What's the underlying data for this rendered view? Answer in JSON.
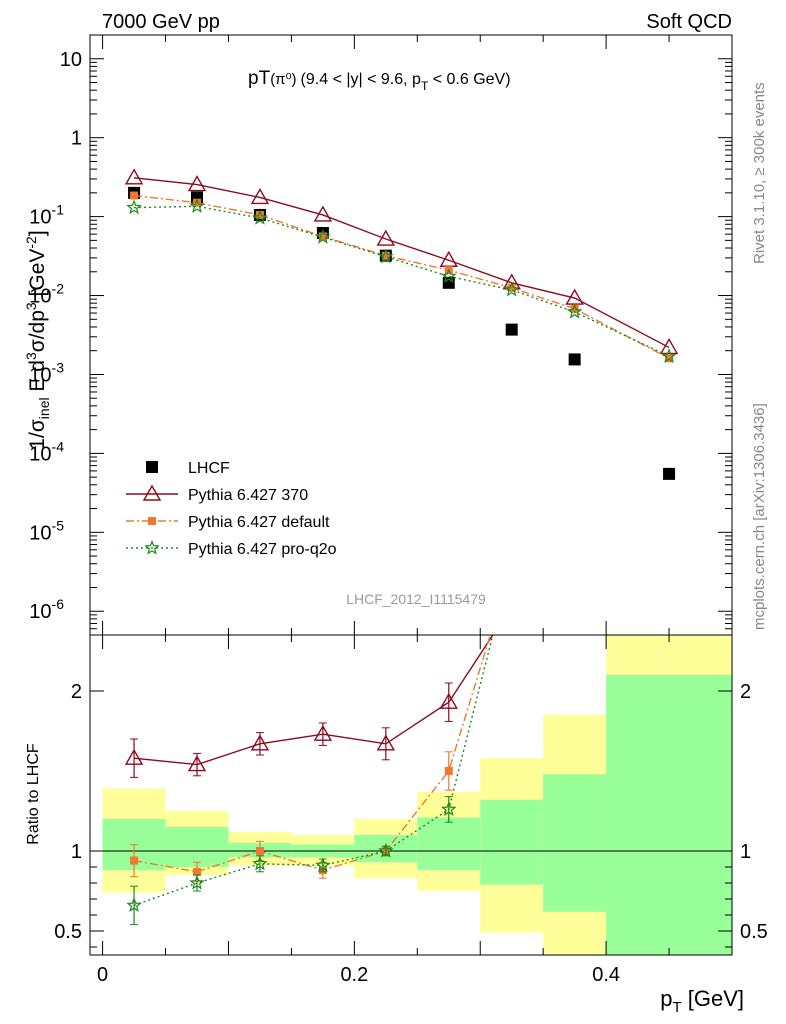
{
  "header": {
    "left": "7000 GeV pp",
    "right": "Soft QCD"
  },
  "side_labels": {
    "rivet": "Rivet 3.1.10, ≥ 300k events",
    "mcplots": "mcplots.cern.ch [arXiv:1306.3436]"
  },
  "chart_data": [
    {
      "type": "scatter",
      "panel": "main",
      "title_main": "pT",
      "title_particle": "(π⁰)",
      "title_rest": "(9.4 < |y| < 9.6, p",
      "title_sub": "T",
      "title_end": " < 0.6 GeV)",
      "watermark": "LHCF_2012_I1115479",
      "ylabel": "1/σinel E d³σ/dp³ [GeV⁻²]",
      "yscale": "log",
      "ylim": [
        5e-07,
        20
      ],
      "xlim": [
        -0.01,
        0.5
      ],
      "yticks": [
        {
          "v": 10,
          "b": "10",
          "e": ""
        },
        {
          "v": 1,
          "b": "1",
          "e": ""
        },
        {
          "v": 0.1,
          "b": "10",
          "e": "-1"
        },
        {
          "v": 0.01,
          "b": "10",
          "e": "-2"
        },
        {
          "v": 0.001,
          "b": "10",
          "e": "-3"
        },
        {
          "v": 0.0001,
          "b": "10",
          "e": "-4"
        },
        {
          "v": 1e-05,
          "b": "10",
          "e": "-5"
        },
        {
          "v": 1e-06,
          "b": "10",
          "e": "-6"
        }
      ],
      "legend": {
        "position": "bottom-left",
        "entries": [
          "LHCF",
          "Pythia 6.427 370",
          "Pythia 6.427 default",
          "Pythia 6.427 pro-q2o"
        ]
      },
      "series": [
        {
          "name": "LHCF",
          "color": "#000000",
          "marker": "square",
          "x": [
            0.025,
            0.075,
            0.125,
            0.175,
            0.225,
            0.275,
            0.325,
            0.375,
            0.45
          ],
          "y": [
            0.2,
            0.175,
            0.105,
            0.062,
            0.032,
            0.0145,
            0.0037,
            0.00155,
            5.5e-05
          ]
        },
        {
          "name": "Pythia 6.427 370",
          "color": "#8b0a1e",
          "marker": "triangle",
          "dash": "",
          "x": [
            0.025,
            0.075,
            0.125,
            0.175,
            0.225,
            0.275,
            0.325,
            0.375,
            0.45
          ],
          "y": [
            0.31,
            0.255,
            0.175,
            0.105,
            0.052,
            0.028,
            0.0145,
            0.0093,
            0.0022
          ]
        },
        {
          "name": "Pythia 6.427 default",
          "color": "#f07830",
          "marker": "square-small",
          "dash": "8 3 2 3",
          "x": [
            0.025,
            0.075,
            0.125,
            0.175,
            0.225,
            0.275,
            0.325,
            0.375,
            0.45
          ],
          "y": [
            0.185,
            0.15,
            0.105,
            0.056,
            0.032,
            0.021,
            0.0125,
            0.0068,
            0.0016
          ]
        },
        {
          "name": "Pythia 6.427 pro-q2o",
          "color": "#1a8a1a",
          "marker": "star",
          "dash": "2 3",
          "x": [
            0.025,
            0.075,
            0.125,
            0.175,
            0.225,
            0.275,
            0.325,
            0.375,
            0.45
          ],
          "y": [
            0.13,
            0.135,
            0.096,
            0.055,
            0.031,
            0.0175,
            0.0118,
            0.0062,
            0.0017
          ]
        }
      ]
    },
    {
      "type": "scatter",
      "panel": "ratio",
      "ylabel": "Ratio to LHCF",
      "xlabel_main": "p",
      "xlabel_sub": "T",
      "xlabel_unit": " [GeV]",
      "xlim": [
        -0.01,
        0.5
      ],
      "ylim": [
        0.35,
        2.35
      ],
      "xticks": [
        0,
        0.2,
        0.4
      ],
      "xtick_labels": [
        "0",
        "0.2",
        "0.4"
      ],
      "yticks": [
        0.5,
        1,
        2
      ],
      "ytick_labels": [
        "0.5",
        "1",
        "2"
      ],
      "bands": [
        {
          "x0": 0.0,
          "x1": 0.05,
          "y0": 0.74,
          "y1": 1.39,
          "g0": 0.88,
          "g1": 1.2
        },
        {
          "x0": 0.05,
          "x1": 0.1,
          "y0": 0.85,
          "y1": 1.25,
          "g0": 0.9,
          "g1": 1.15
        },
        {
          "x0": 0.1,
          "x1": 0.15,
          "y0": 0.91,
          "y1": 1.12,
          "g0": 0.96,
          "g1": 1.05
        },
        {
          "x0": 0.15,
          "x1": 0.2,
          "y0": 0.91,
          "y1": 1.1,
          "g0": 0.96,
          "g1": 1.04
        },
        {
          "x0": 0.2,
          "x1": 0.25,
          "y0": 0.83,
          "y1": 1.2,
          "g0": 0.93,
          "g1": 1.1
        },
        {
          "x0": 0.25,
          "x1": 0.3,
          "y0": 0.75,
          "y1": 1.37,
          "g0": 0.88,
          "g1": 1.21
        },
        {
          "x0": 0.3,
          "x1": 0.35,
          "y0": 0.49,
          "y1": 1.58,
          "g0": 0.79,
          "g1": 1.32
        },
        {
          "x0": 0.35,
          "x1": 0.4,
          "y0": 0.35,
          "y1": 1.85,
          "g0": 0.62,
          "g1": 1.48
        },
        {
          "x0": 0.4,
          "x1": 0.5,
          "y0": 0.35,
          "y1": 2.35,
          "g0": 0.35,
          "g1": 2.1
        }
      ],
      "series": [
        {
          "name": "Pythia 6.427 370",
          "color": "#8b0a1e",
          "marker": "triangle",
          "dash": "",
          "x": [
            0.025,
            0.075,
            0.125,
            0.175,
            0.225,
            0.275,
            0.31
          ],
          "y": [
            1.58,
            1.54,
            1.67,
            1.73,
            1.67,
            1.93,
            2.35
          ],
          "err": [
            0.12,
            0.07,
            0.07,
            0.07,
            0.1,
            0.12,
            0
          ],
          "markers": 6
        },
        {
          "name": "Pythia 6.427 default",
          "color": "#f07830",
          "marker": "square-small",
          "dash": "8 3 2 3",
          "x": [
            0.025,
            0.075,
            0.125,
            0.175,
            0.225,
            0.275,
            0.308
          ],
          "y": [
            0.94,
            0.87,
            1.0,
            0.88,
            1.0,
            1.5,
            2.35
          ],
          "err": [
            0.1,
            0.06,
            0.06,
            0.05,
            0.03,
            0.12,
            0
          ],
          "markers": 6
        },
        {
          "name": "Pythia 6.427 pro-q2o",
          "color": "#1a8a1a",
          "marker": "star",
          "dash": "2 3",
          "x": [
            0.025,
            0.075,
            0.125,
            0.175,
            0.225,
            0.275,
            0.31
          ],
          "y": [
            0.66,
            0.8,
            0.92,
            0.91,
            1.0,
            1.26,
            2.35
          ],
          "err": [
            0.12,
            0.05,
            0.05,
            0.04,
            0.03,
            0.08,
            0
          ],
          "markers": 6
        }
      ]
    }
  ]
}
